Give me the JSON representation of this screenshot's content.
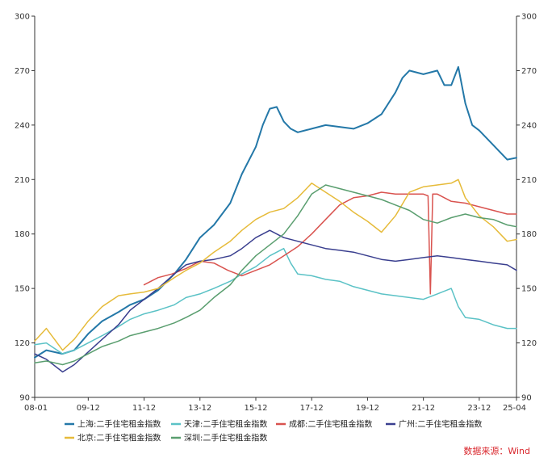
{
  "chart_data": {
    "type": "line",
    "title": "",
    "xlabel": "",
    "ylabel": "",
    "ylim": [
      90,
      300
    ],
    "y_ticks": [
      90,
      120,
      150,
      180,
      210,
      240,
      270,
      300
    ],
    "x_ticks": [
      "08-01",
      "09-12",
      "11-12",
      "13-12",
      "15-12",
      "17-12",
      "19-12",
      "21-12",
      "23-12",
      "25-04"
    ],
    "x_range": [
      "2008-01",
      "2025-04"
    ],
    "dual_y_axis": true,
    "grid": false,
    "legend_position": "bottom",
    "source": "数据来源：Wind",
    "series": [
      {
        "name": "上海:二手住宅租金指数",
        "color": "#2478a8",
        "points": [
          [
            "2008-01",
            112
          ],
          [
            "2008-06",
            116
          ],
          [
            "2009-01",
            114
          ],
          [
            "2009-06",
            116
          ],
          [
            "2009-12",
            125
          ],
          [
            "2010-06",
            132
          ],
          [
            "2011-01",
            137
          ],
          [
            "2011-06",
            141
          ],
          [
            "2011-12",
            144
          ],
          [
            "2012-06",
            149
          ],
          [
            "2013-01",
            158
          ],
          [
            "2013-06",
            166
          ],
          [
            "2013-12",
            178
          ],
          [
            "2014-06",
            185
          ],
          [
            "2015-01",
            197
          ],
          [
            "2015-06",
            213
          ],
          [
            "2015-12",
            228
          ],
          [
            "2016-03",
            240
          ],
          [
            "2016-06",
            249
          ],
          [
            "2016-09",
            250
          ],
          [
            "2016-12",
            242
          ],
          [
            "2017-03",
            238
          ],
          [
            "2017-06",
            236
          ],
          [
            "2017-12",
            238
          ],
          [
            "2018-06",
            240
          ],
          [
            "2018-12",
            239
          ],
          [
            "2019-06",
            238
          ],
          [
            "2019-12",
            241
          ],
          [
            "2020-06",
            246
          ],
          [
            "2020-12",
            258
          ],
          [
            "2021-03",
            266
          ],
          [
            "2021-06",
            270
          ],
          [
            "2021-12",
            268
          ],
          [
            "2022-06",
            270
          ],
          [
            "2022-09",
            262
          ],
          [
            "2022-12",
            262
          ],
          [
            "2023-03",
            272
          ],
          [
            "2023-06",
            252
          ],
          [
            "2023-09",
            240
          ],
          [
            "2023-12",
            237
          ],
          [
            "2024-06",
            229
          ],
          [
            "2024-12",
            221
          ],
          [
            "2025-04",
            222
          ]
        ]
      },
      {
        "name": "天津:二手住宅租金指数",
        "color": "#5bc2c6",
        "points": [
          [
            "2008-01",
            119
          ],
          [
            "2008-06",
            120
          ],
          [
            "2009-01",
            114
          ],
          [
            "2009-06",
            116
          ],
          [
            "2009-12",
            120
          ],
          [
            "2010-06",
            124
          ],
          [
            "2011-01",
            129
          ],
          [
            "2011-06",
            133
          ],
          [
            "2011-12",
            136
          ],
          [
            "2012-06",
            138
          ],
          [
            "2013-01",
            141
          ],
          [
            "2013-06",
            145
          ],
          [
            "2013-12",
            147
          ],
          [
            "2014-06",
            150
          ],
          [
            "2015-01",
            154
          ],
          [
            "2015-06",
            158
          ],
          [
            "2015-12",
            162
          ],
          [
            "2016-06",
            168
          ],
          [
            "2016-12",
            172
          ],
          [
            "2017-03",
            164
          ],
          [
            "2017-06",
            158
          ],
          [
            "2017-12",
            157
          ],
          [
            "2018-06",
            155
          ],
          [
            "2018-12",
            154
          ],
          [
            "2019-06",
            151
          ],
          [
            "2019-12",
            149
          ],
          [
            "2020-06",
            147
          ],
          [
            "2020-12",
            146
          ],
          [
            "2021-06",
            145
          ],
          [
            "2021-12",
            144
          ],
          [
            "2022-06",
            147
          ],
          [
            "2022-12",
            150
          ],
          [
            "2023-03",
            140
          ],
          [
            "2023-06",
            134
          ],
          [
            "2023-12",
            133
          ],
          [
            "2024-06",
            130
          ],
          [
            "2024-12",
            128
          ],
          [
            "2025-04",
            128
          ]
        ]
      },
      {
        "name": "成都:二手住宅租金指数",
        "color": "#d9534f",
        "points": [
          [
            "2011-12",
            152
          ],
          [
            "2012-06",
            156
          ],
          [
            "2012-12",
            158
          ],
          [
            "2013-06",
            161
          ],
          [
            "2013-12",
            165
          ],
          [
            "2014-06",
            164
          ],
          [
            "2014-12",
            160
          ],
          [
            "2015-06",
            157
          ],
          [
            "2015-12",
            160
          ],
          [
            "2016-06",
            163
          ],
          [
            "2016-12",
            168
          ],
          [
            "2017-06",
            173
          ],
          [
            "2017-12",
            180
          ],
          [
            "2018-06",
            188
          ],
          [
            "2018-12",
            196
          ],
          [
            "2019-06",
            200
          ],
          [
            "2019-12",
            201
          ],
          [
            "2020-06",
            203
          ],
          [
            "2020-12",
            202
          ],
          [
            "2021-06",
            202
          ],
          [
            "2021-12",
            202
          ],
          [
            "2022-02",
            201
          ],
          [
            "2022-03",
            147
          ],
          [
            "2022-04",
            202
          ],
          [
            "2022-06",
            202
          ],
          [
            "2022-12",
            198
          ],
          [
            "2023-06",
            197
          ],
          [
            "2023-12",
            195
          ],
          [
            "2024-06",
            193
          ],
          [
            "2024-12",
            191
          ],
          [
            "2025-04",
            191
          ]
        ]
      },
      {
        "name": "广州:二手住宅租金指数",
        "color": "#3a3f8f",
        "points": [
          [
            "2008-01",
            114
          ],
          [
            "2008-06",
            111
          ],
          [
            "2009-01",
            104
          ],
          [
            "2009-06",
            108
          ],
          [
            "2009-12",
            115
          ],
          [
            "2010-06",
            122
          ],
          [
            "2011-01",
            130
          ],
          [
            "2011-06",
            138
          ],
          [
            "2011-12",
            144
          ],
          [
            "2012-06",
            150
          ],
          [
            "2013-01",
            158
          ],
          [
            "2013-06",
            163
          ],
          [
            "2013-12",
            165
          ],
          [
            "2014-06",
            166
          ],
          [
            "2015-01",
            168
          ],
          [
            "2015-06",
            172
          ],
          [
            "2015-12",
            178
          ],
          [
            "2016-06",
            182
          ],
          [
            "2016-12",
            178
          ],
          [
            "2017-06",
            176
          ],
          [
            "2017-12",
            174
          ],
          [
            "2018-06",
            172
          ],
          [
            "2018-12",
            171
          ],
          [
            "2019-06",
            170
          ],
          [
            "2019-12",
            168
          ],
          [
            "2020-06",
            166
          ],
          [
            "2020-12",
            165
          ],
          [
            "2021-06",
            166
          ],
          [
            "2021-12",
            167
          ],
          [
            "2022-06",
            168
          ],
          [
            "2022-12",
            167
          ],
          [
            "2023-06",
            166
          ],
          [
            "2023-12",
            165
          ],
          [
            "2024-06",
            164
          ],
          [
            "2024-12",
            163
          ],
          [
            "2025-04",
            160
          ]
        ]
      },
      {
        "name": "北京:二手住宅租金指数",
        "color": "#e6bb3a",
        "points": [
          [
            "2008-01",
            121
          ],
          [
            "2008-06",
            128
          ],
          [
            "2009-01",
            116
          ],
          [
            "2009-06",
            122
          ],
          [
            "2009-12",
            132
          ],
          [
            "2010-06",
            140
          ],
          [
            "2011-01",
            146
          ],
          [
            "2011-06",
            147
          ],
          [
            "2011-12",
            148
          ],
          [
            "2012-06",
            150
          ],
          [
            "2013-01",
            156
          ],
          [
            "2013-06",
            160
          ],
          [
            "2013-12",
            164
          ],
          [
            "2014-06",
            170
          ],
          [
            "2015-01",
            176
          ],
          [
            "2015-06",
            182
          ],
          [
            "2015-12",
            188
          ],
          [
            "2016-06",
            192
          ],
          [
            "2016-12",
            194
          ],
          [
            "2017-06",
            200
          ],
          [
            "2017-12",
            208
          ],
          [
            "2018-06",
            203
          ],
          [
            "2018-12",
            198
          ],
          [
            "2019-06",
            192
          ],
          [
            "2019-12",
            187
          ],
          [
            "2020-06",
            181
          ],
          [
            "2020-12",
            190
          ],
          [
            "2021-06",
            203
          ],
          [
            "2021-12",
            206
          ],
          [
            "2022-06",
            207
          ],
          [
            "2022-12",
            208
          ],
          [
            "2023-03",
            210
          ],
          [
            "2023-06",
            200
          ],
          [
            "2023-12",
            190
          ],
          [
            "2024-06",
            184
          ],
          [
            "2024-12",
            176
          ],
          [
            "2025-04",
            177
          ]
        ]
      },
      {
        "name": "深圳:二手住宅租金指数",
        "color": "#5a9e6f",
        "points": [
          [
            "2008-01",
            109
          ],
          [
            "2008-06",
            110
          ],
          [
            "2009-01",
            108
          ],
          [
            "2009-06",
            110
          ],
          [
            "2009-12",
            114
          ],
          [
            "2010-06",
            118
          ],
          [
            "2011-01",
            121
          ],
          [
            "2011-06",
            124
          ],
          [
            "2011-12",
            126
          ],
          [
            "2012-06",
            128
          ],
          [
            "2013-01",
            131
          ],
          [
            "2013-06",
            134
          ],
          [
            "2013-12",
            138
          ],
          [
            "2014-06",
            145
          ],
          [
            "2015-01",
            152
          ],
          [
            "2015-06",
            160
          ],
          [
            "2015-12",
            168
          ],
          [
            "2016-06",
            174
          ],
          [
            "2016-12",
            180
          ],
          [
            "2017-06",
            190
          ],
          [
            "2017-12",
            202
          ],
          [
            "2018-06",
            207
          ],
          [
            "2018-12",
            205
          ],
          [
            "2019-06",
            203
          ],
          [
            "2019-12",
            201
          ],
          [
            "2020-06",
            199
          ],
          [
            "2020-12",
            196
          ],
          [
            "2021-06",
            193
          ],
          [
            "2021-12",
            188
          ],
          [
            "2022-06",
            186
          ],
          [
            "2022-12",
            189
          ],
          [
            "2023-06",
            191
          ],
          [
            "2023-12",
            189
          ],
          [
            "2024-06",
            188
          ],
          [
            "2024-12",
            185
          ],
          [
            "2025-04",
            184
          ]
        ]
      }
    ]
  }
}
